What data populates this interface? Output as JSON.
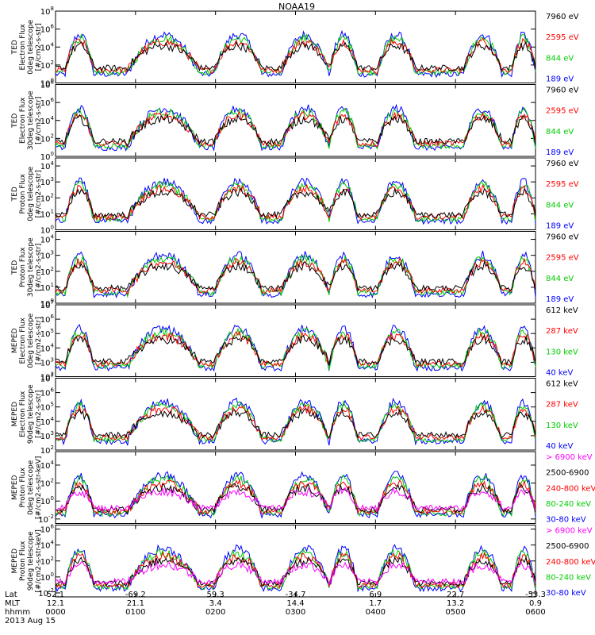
{
  "chart_data": {
    "type": "line",
    "title": "NOAA19",
    "x_axis": {
      "rows": [
        {
          "label": "Lat",
          "values": [
            "52.1",
            "-69.2",
            "59.3",
            "-34.7",
            "6.9",
            "22.7",
            "-53.3"
          ]
        },
        {
          "label": "MLT",
          "values": [
            "12.1",
            "21.1",
            "3.4",
            "14.4",
            "1.7",
            "13.2",
            "0.9"
          ]
        },
        {
          "label": "hhmm",
          "values": [
            "0000",
            "0100",
            "0200",
            "0300",
            "0400",
            "0500",
            "0600"
          ]
        }
      ],
      "date": "2013 Aug 15",
      "range": [
        "00:00",
        "06:00"
      ]
    },
    "panels": [
      {
        "ylabel": [
          "TED",
          "Electron Flux",
          "0deg telescope",
          "[#/cm2-s-str]"
        ],
        "yticks": [
          {
            "exp": 8
          },
          {
            "exp": 6
          },
          {
            "exp": 4
          },
          {
            "exp": 2
          },
          {
            "exp": 0
          }
        ],
        "ylim": [
          0,
          8
        ],
        "log": true,
        "legend": [
          {
            "name": "7960 eV",
            "color": "#000000"
          },
          {
            "name": "2595 eV",
            "color": "#ff0000"
          },
          {
            "name": "844 eV",
            "color": "#00cc00"
          },
          {
            "name": "189 eV",
            "color": "#0000ff"
          }
        ]
      },
      {
        "ylabel": [
          "TED",
          "Electron Flux",
          "30deg telescope",
          "[#/cm2-s-str]"
        ],
        "yticks": [
          {
            "exp": 8
          },
          {
            "exp": 6
          },
          {
            "exp": 4
          },
          {
            "exp": 2
          },
          {
            "exp": 0
          }
        ],
        "ylim": [
          0,
          8
        ],
        "log": true,
        "legend": [
          {
            "name": "7960 eV",
            "color": "#000000"
          },
          {
            "name": "2595 eV",
            "color": "#ff0000"
          },
          {
            "name": "844 eV",
            "color": "#00cc00"
          },
          {
            "name": "189 eV",
            "color": "#0000ff"
          }
        ]
      },
      {
        "ylabel": [
          "TED",
          "Proton Flux",
          "0deg telescope",
          "[#/cm2-s-str]"
        ],
        "yticks": [
          {
            "exp": 4
          },
          {
            "exp": 3
          },
          {
            "exp": 2
          },
          {
            "exp": 1
          },
          {
            "exp": 0
          }
        ],
        "ylim": [
          0,
          4.5
        ],
        "log": true,
        "legend": [
          {
            "name": "7960 eV",
            "color": "#000000"
          },
          {
            "name": "2595 eV",
            "color": "#ff0000"
          },
          {
            "name": "844 eV",
            "color": "#00cc00"
          },
          {
            "name": "189 eV",
            "color": "#0000ff"
          }
        ]
      },
      {
        "ylabel": [
          "TED",
          "Proton Flux",
          "30deg telescope",
          "[#/cm2-s-str]"
        ],
        "yticks": [
          {
            "exp": 4
          },
          {
            "exp": 3
          },
          {
            "exp": 2
          },
          {
            "exp": 1
          },
          {
            "exp": 0
          }
        ],
        "ylim": [
          0,
          4.5
        ],
        "log": true,
        "legend": [
          {
            "name": "7960 eV",
            "color": "#000000"
          },
          {
            "name": "2595 eV",
            "color": "#ff0000"
          },
          {
            "name": "844 eV",
            "color": "#00cc00"
          },
          {
            "name": "189 eV",
            "color": "#0000ff"
          }
        ]
      },
      {
        "ylabel": [
          "MEPED",
          "Electron Flux",
          "0deg telescope",
          "[#/cm2-s-str]"
        ],
        "yticks": [
          {
            "exp": 7
          },
          {
            "exp": 6
          },
          {
            "exp": 5
          },
          {
            "exp": 4
          },
          {
            "exp": 3
          },
          {
            "exp": 2
          }
        ],
        "ylim": [
          2,
          7
        ],
        "log": true,
        "legend": [
          {
            "name": "612 keV",
            "color": "#000000"
          },
          {
            "name": "287 keV",
            "color": "#ff0000"
          },
          {
            "name": "130 keV",
            "color": "#00cc00"
          },
          {
            "name": "40 keV",
            "color": "#0000ff"
          }
        ]
      },
      {
        "ylabel": [
          "MEPED",
          "Electron Flux",
          "90deg telescope",
          "[#/cm2-s-str]"
        ],
        "yticks": [
          {
            "exp": 7
          },
          {
            "exp": 6
          },
          {
            "exp": 5
          },
          {
            "exp": 4
          },
          {
            "exp": 3
          },
          {
            "exp": 2
          }
        ],
        "ylim": [
          2,
          7
        ],
        "log": true,
        "legend": [
          {
            "name": "612 keV",
            "color": "#000000"
          },
          {
            "name": "287 keV",
            "color": "#ff0000"
          },
          {
            "name": "130 keV",
            "color": "#00cc00"
          },
          {
            "name": "40 keV",
            "color": "#0000ff"
          }
        ]
      },
      {
        "ylabel": [
          "MEPED",
          "Proton Flux",
          "0deg telescope",
          "[#/cm2-s-str-keV]"
        ],
        "yticks": [
          {
            "exp": 4
          },
          {
            "exp": 2
          },
          {
            "exp": 0
          },
          {
            "exp": -2
          }
        ],
        "ylim": [
          -2.5,
          5.5
        ],
        "log": true,
        "legend": [
          {
            "name": "> 6900 keV",
            "color": "#ff00ff"
          },
          {
            "name": "2500-6900",
            "color": "#000000"
          },
          {
            "name": "240-800 keV",
            "color": "#ff0000"
          },
          {
            "name": "80-240 keV",
            "color": "#00cc00"
          },
          {
            "name": "30-80 keV",
            "color": "#0000ff"
          }
        ]
      },
      {
        "ylabel": [
          "MEPED",
          "Proton Flux",
          "90deg telescope",
          "[#/cm2-s-str-keV]"
        ],
        "yticks": [
          {
            "exp": 6
          },
          {
            "exp": 4
          },
          {
            "exp": 2
          },
          {
            "exp": 0
          },
          {
            "exp": -2
          }
        ],
        "ylim": [
          -2.5,
          6.5
        ],
        "log": true,
        "legend": [
          {
            "name": "> 6900 keV",
            "color": "#ff00ff"
          },
          {
            "name": "2500-6900",
            "color": "#000000"
          },
          {
            "name": "240-800 keV",
            "color": "#ff0000"
          },
          {
            "name": "80-240 keV",
            "color": "#00cc00"
          },
          {
            "name": "30-80 keV",
            "color": "#0000ff"
          }
        ]
      }
    ]
  }
}
